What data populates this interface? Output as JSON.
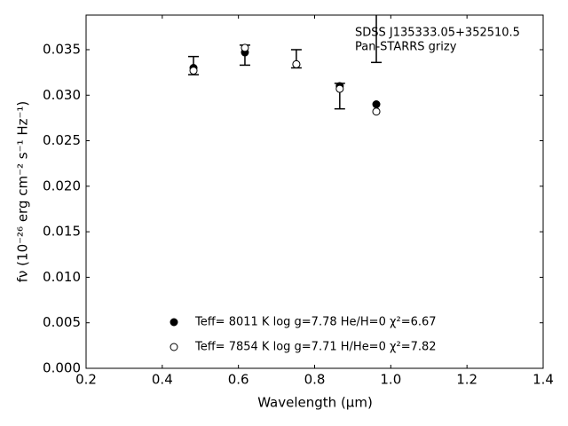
{
  "chart_data": {
    "type": "scatter",
    "annotation": [
      "SDSS J135333.05+352510.5",
      "Pan-STARRS grizy"
    ],
    "xlabel": "Wavelength (μm)",
    "ylabel": "fν (10⁻²⁶ erg cm⁻² s⁻¹ Hz⁻¹)",
    "x": [
      0.482,
      0.617,
      0.752,
      0.866,
      0.962
    ],
    "series": [
      {
        "values": [
          0.03325,
          0.0344,
          0.034,
          0.0299,
          0.0376
        ],
        "errors": [
          0.001,
          0.0011,
          0.001,
          0.0014,
          0.004
        ],
        "color": "#000000",
        "marker": "errorbar"
      },
      {
        "name": "Teff=  8011 K  log g=7.78  He/H=0  χ²=6.67",
        "values": [
          0.033,
          0.0347,
          0.0334,
          0.031,
          0.029
        ],
        "color": "#000000",
        "marker": "filled"
      },
      {
        "name": "Teff=  7854 K  log g=7.71  H/He=0  χ²=7.82",
        "values": [
          0.0327,
          0.0352,
          0.0334,
          0.0307,
          0.0282
        ],
        "color": "#000000",
        "marker": "open"
      }
    ],
    "xlim": [
      0.2,
      1.4
    ],
    "xticks": [
      0.2,
      0.4,
      0.6,
      0.8,
      {
        "value": 1,
        "label": "1.0"
      },
      1.2,
      1.4
    ],
    "ylim": [
      0,
      0.0388
    ],
    "yticks": [
      {
        "value": 0,
        "label": "0.000"
      },
      0.005,
      {
        "value": 0.01,
        "label": "0.010"
      },
      0.015,
      {
        "value": 0.02,
        "label": "0.020"
      },
      0.025,
      {
        "value": 0.03,
        "label": "0.030"
      },
      0.035
    ],
    "grid": false
  }
}
